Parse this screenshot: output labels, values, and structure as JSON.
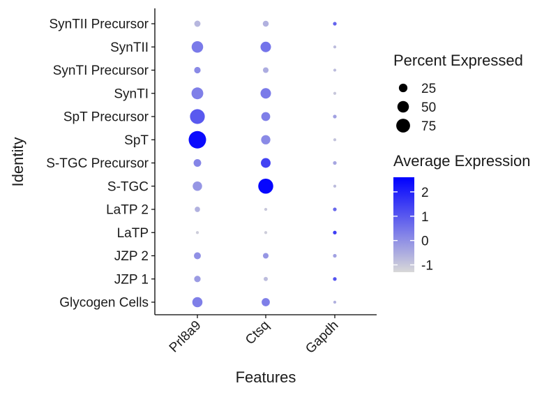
{
  "chart_data": {
    "type": "dotplot",
    "title": "",
    "xlabel": "Features",
    "ylabel": "Identity",
    "features": [
      "Prl8a9",
      "Ctsq",
      "Gapdh"
    ],
    "identities": [
      "SynTII Precursor",
      "SynTII",
      "SynTI Precursor",
      "SynTI",
      "SpT Precursor",
      "SpT",
      "S-TGC Precursor",
      "S-TGC",
      "LaTP 2",
      "LaTP",
      "JZP 2",
      "JZP 1",
      "Glycogen Cells"
    ],
    "percent_expressed": [
      [
        9,
        8,
        2
      ],
      [
        40,
        32,
        1
      ],
      [
        10,
        7,
        1
      ],
      [
        42,
        32,
        1
      ],
      [
        70,
        22,
        2
      ],
      [
        100,
        24,
        1
      ],
      [
        15,
        27,
        2
      ],
      [
        25,
        72,
        1
      ],
      [
        6,
        1,
        2
      ],
      [
        1,
        1,
        2
      ],
      [
        12,
        7,
        2
      ],
      [
        10,
        3,
        2
      ],
      [
        30,
        18,
        1
      ]
    ],
    "average_expression": [
      [
        -0.7,
        -0.6,
        0.8
      ],
      [
        0.4,
        0.5,
        -0.8
      ],
      [
        0.1,
        -0.5,
        -0.8
      ],
      [
        0.3,
        0.4,
        -1.0
      ],
      [
        1.0,
        0.3,
        -0.3
      ],
      [
        2.4,
        0.1,
        -0.9
      ],
      [
        0.2,
        1.4,
        -0.4
      ],
      [
        -0.1,
        2.5,
        -0.8
      ],
      [
        -0.6,
        -1.0,
        0.7
      ],
      [
        -1.1,
        -1.1,
        1.5
      ],
      [
        0.0,
        -0.1,
        -0.3
      ],
      [
        -0.2,
        -0.8,
        1.1
      ],
      [
        0.3,
        0.3,
        -0.6
      ]
    ],
    "size_legend": {
      "title": "Percent Expressed",
      "breaks": [
        25,
        50,
        75
      ],
      "labels": [
        "25",
        "50",
        "75"
      ]
    },
    "color_legend": {
      "title": "Average Expression",
      "range": [
        -1.3,
        2.6
      ],
      "breaks": [
        2,
        1,
        0,
        -1
      ],
      "labels": [
        "2",
        "1",
        "0",
        "-1"
      ],
      "low_color": "#d8d8d8",
      "high_color": "#0000ff"
    }
  }
}
